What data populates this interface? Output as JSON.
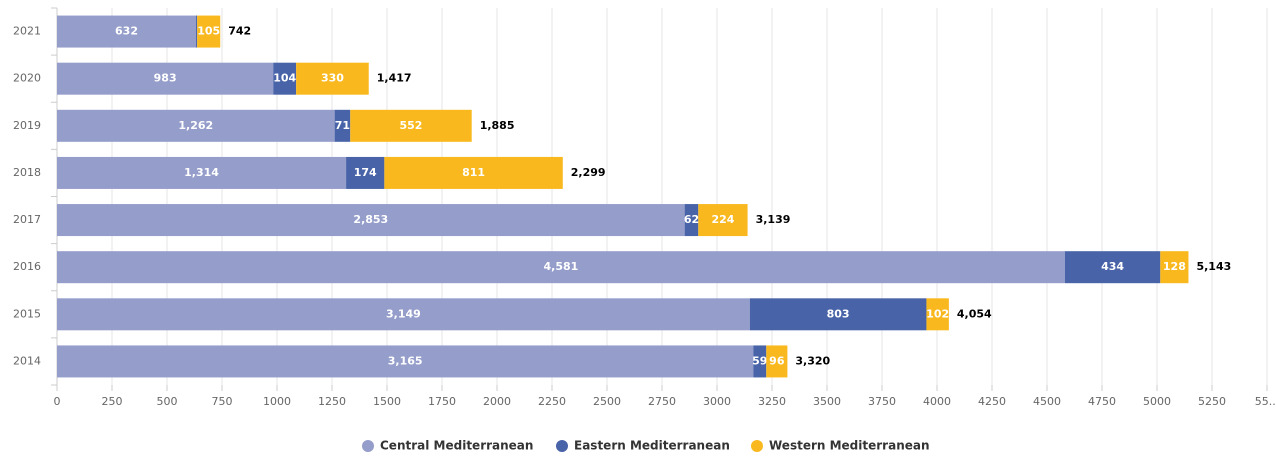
{
  "chart_data": {
    "type": "stacked-barh",
    "categories": [
      "2021",
      "2020",
      "2019",
      "2018",
      "2017",
      "2016",
      "2015",
      "2014"
    ],
    "series": [
      {
        "name": "Central Mediterranean",
        "color": "#959dcb",
        "values": [
          632,
          983,
          1262,
          1314,
          2853,
          4581,
          3149,
          3165
        ],
        "value_labels": [
          "632",
          "983",
          "1,262",
          "1,314",
          "2,853",
          "4,581",
          "3,149",
          "3,165"
        ]
      },
      {
        "name": "Eastern Mediterranean",
        "color": "#4863a8",
        "values": [
          5,
          104,
          71,
          174,
          62,
          434,
          803,
          59
        ],
        "value_labels": [
          null,
          "104",
          "71",
          "174",
          "62",
          "434",
          "803",
          "59"
        ]
      },
      {
        "name": "Western Mediterranean",
        "color": "#f9b91e",
        "values": [
          105,
          330,
          552,
          811,
          224,
          128,
          102,
          96
        ],
        "value_labels": [
          "105",
          "330",
          "552",
          "811",
          "224",
          "128",
          "102",
          "96"
        ]
      }
    ],
    "totals": [
      742,
      1417,
      1885,
      2299,
      3139,
      5143,
      4054,
      3320
    ],
    "total_labels": [
      "742",
      "1,417",
      "1,885",
      "2,299",
      "3,139",
      "5,143",
      "4,054",
      "3,320"
    ],
    "xlim": [
      0,
      5500
    ],
    "xticks": [
      0,
      250,
      500,
      750,
      1000,
      1250,
      1500,
      1750,
      2000,
      2250,
      2500,
      2750,
      3000,
      3250,
      3500,
      3750,
      4000,
      4250,
      4500,
      4750,
      5000,
      5250,
      {
        "value": 5500,
        "label": "55..."
      }
    ],
    "grid": true,
    "legend": "bottom"
  }
}
